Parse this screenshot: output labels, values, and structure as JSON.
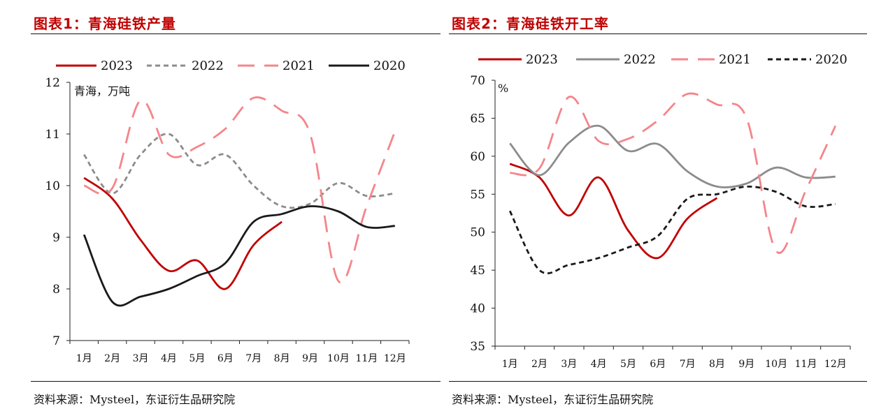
{
  "charts": [
    {
      "title": "图表1：青海硅铁产量",
      "source": "资料来源：Mysteel，东证衍生品研究院",
      "chart_data": {
        "type": "line",
        "title": "图表1：青海硅铁产量",
        "xlabel": "",
        "ylabel": "青海，万吨",
        "categories": [
          "1月",
          "2月",
          "3月",
          "4月",
          "5月",
          "6月",
          "7月",
          "8月",
          "9月",
          "10月",
          "11月",
          "12月"
        ],
        "ylim": [
          7,
          12
        ],
        "yticks": [
          7,
          8,
          9,
          10,
          11,
          12
        ],
        "grid": false,
        "legend": "top",
        "series": [
          {
            "name": "2023",
            "color": "#c00000",
            "dash": "solid",
            "values": [
              10.15,
              9.75,
              8.95,
              8.35,
              8.55,
              8.0,
              8.85,
              9.3,
              null,
              null,
              null,
              null
            ]
          },
          {
            "name": "2022",
            "color": "#8c8c8c",
            "dash": "short",
            "values": [
              10.6,
              9.85,
              10.6,
              11.0,
              10.4,
              10.6,
              10.0,
              9.6,
              9.65,
              10.05,
              9.8,
              9.85
            ]
          },
          {
            "name": "2021",
            "color": "#f4858a",
            "dash": "long",
            "values": [
              10.0,
              9.95,
              11.65,
              10.6,
              10.75,
              11.1,
              11.7,
              11.45,
              11.0,
              8.15,
              9.6,
              11.05
            ]
          },
          {
            "name": "2020",
            "color": "#1a1a1a",
            "dash": "solid",
            "values": [
              9.05,
              7.75,
              7.85,
              8.0,
              8.25,
              8.5,
              9.3,
              9.45,
              9.6,
              9.5,
              9.2,
              9.22
            ]
          }
        ]
      }
    },
    {
      "title": "图表2：青海硅铁开工率",
      "source": "资料来源：Mysteel，东证衍生品研究院",
      "chart_data": {
        "type": "line",
        "title": "图表2：青海硅铁开工率",
        "xlabel": "",
        "ylabel": "%",
        "categories": [
          "1月",
          "2月",
          "3月",
          "4月",
          "5月",
          "6月",
          "7月",
          "8月",
          "9月",
          "10月",
          "11月",
          "12月"
        ],
        "ylim": [
          35,
          70
        ],
        "yticks": [
          35,
          40,
          45,
          50,
          55,
          60,
          65,
          70
        ],
        "grid": false,
        "legend": "top",
        "series": [
          {
            "name": "2023",
            "color": "#c00000",
            "dash": "solid",
            "values": [
              59.0,
              57.2,
              52.2,
              57.2,
              50.2,
              46.6,
              51.8,
              54.5,
              null,
              null,
              null,
              null
            ]
          },
          {
            "name": "2022",
            "color": "#8c8c8c",
            "dash": "solid",
            "values": [
              61.7,
              57.5,
              61.8,
              64.0,
              60.7,
              61.6,
              58.0,
              56.0,
              56.4,
              58.5,
              57.2,
              57.3
            ]
          },
          {
            "name": "2021",
            "color": "#f4858a",
            "dash": "long",
            "values": [
              57.8,
              58.4,
              67.8,
              62.0,
              62.3,
              64.7,
              68.2,
              66.8,
              65.0,
              47.5,
              55.5,
              64.0
            ]
          },
          {
            "name": "2020",
            "color": "#1a1a1a",
            "dash": "short",
            "values": [
              52.8,
              45.0,
              45.7,
              46.6,
              48.0,
              49.5,
              54.4,
              55.0,
              56.0,
              55.3,
              53.4,
              53.7
            ]
          }
        ]
      }
    }
  ]
}
